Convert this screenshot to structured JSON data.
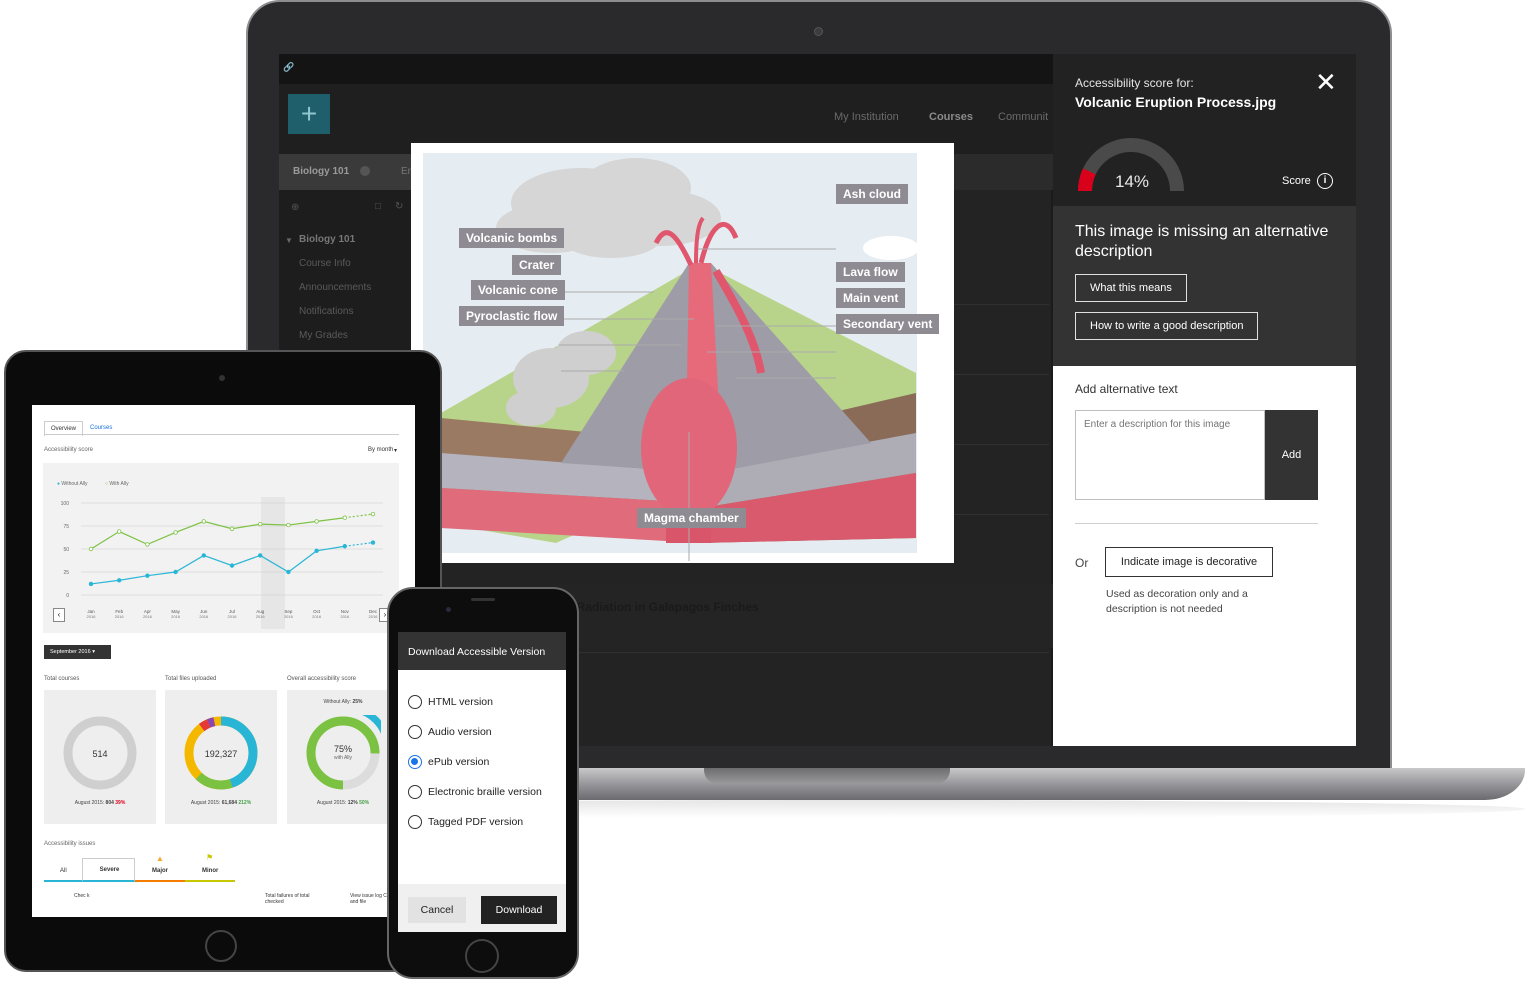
{
  "lms": {
    "nav": [
      "My Institution",
      "Courses",
      "Communit"
    ],
    "course_tab": "Biology 101",
    "course_tab_extra": "En",
    "side_items": [
      "Biology 101",
      "Course Info",
      "Announcements",
      "Notifications",
      "My Grades"
    ],
    "finches_title": "ve Radiation in Galapagos Finches"
  },
  "volcano": {
    "labels": {
      "ash_cloud": "Ash cloud",
      "volcanic_bombs": "Volcanic bombs",
      "crater": "Crater",
      "volcanic_cone": "Volcanic cone",
      "pyroclastic_flow": "Pyroclastic flow",
      "lava_flow": "Lava flow",
      "main_vent": "Main vent",
      "secondary_vent": "Secondary vent",
      "magma_chamber": "Magma chamber"
    }
  },
  "ally": {
    "score_for_label": "Accessibility score for:",
    "file_name": "Volcanic Eruption Process.jpg",
    "close_icon": "close-icon",
    "score_percent": "14%",
    "score_value": 0.14,
    "score_label": "Score",
    "message": "This image is missing an alternative description",
    "what_this_means": "What this means",
    "how_to_write": "How to write a good description",
    "add_alt_label": "Add alternative text",
    "textarea_placeholder": "Enter a description for this image",
    "add_button": "Add",
    "or_label": "Or",
    "decorative_button": "Indicate image is decorative",
    "decorative_note": "Used as decoration only and a description is not needed",
    "colors": {
      "score_red": "#d9001b",
      "panel_dark": "#222222"
    }
  },
  "tablet": {
    "tabs": [
      "Overview",
      "Courses"
    ],
    "accessibility_score_label": "Accessibility score",
    "by_month": "By month",
    "legend": [
      "Without Ally",
      "With Ally"
    ],
    "y_ticks": [
      "100",
      "75",
      "50",
      "25",
      "0"
    ],
    "months": [
      "Jan",
      "Feb",
      "Apr",
      "May",
      "Jun",
      "Jul",
      "Aug",
      "Sep",
      "Oct",
      "Nov",
      "Dec"
    ],
    "month_year": "2016",
    "month_selector": "September 2016",
    "cards": [
      {
        "title": "Total courses",
        "value": "514",
        "footer": "August 2015: ",
        "footer_bold": "804",
        "delta": "39%",
        "delta_color": "#d9001b"
      },
      {
        "title": "Total files uploaded",
        "value": "192,327",
        "footer": "August 2015: ",
        "footer_bold": "61,684",
        "delta": "212%",
        "delta_color": "#43a047"
      },
      {
        "title": "Overall accessibility score",
        "value": "75%",
        "sub": "with Ally",
        "top_note": "Without Ally: ",
        "top_note_bold": "25%",
        "footer": "August 2015: ",
        "footer_bold": "12%",
        "delta": "50%",
        "delta_color": "#43a047"
      }
    ],
    "issues_label": "Accessibility issues",
    "issue_tabs": [
      "All",
      "Severe",
      "Major",
      "Minor"
    ],
    "table_head": [
      "Chec k",
      "Total failures of total checked",
      "View issue log Course and file"
    ],
    "colors": {
      "without_ally": "#29b6d6",
      "with_ally": "#7cc242"
    }
  },
  "phone": {
    "title": "Download Accessible Version",
    "options": [
      "HTML version",
      "Audio version",
      "ePub version",
      "Electronic braille version",
      "Tagged PDF version"
    ],
    "selected_option": "ePub version",
    "cancel": "Cancel",
    "download": "Download"
  }
}
